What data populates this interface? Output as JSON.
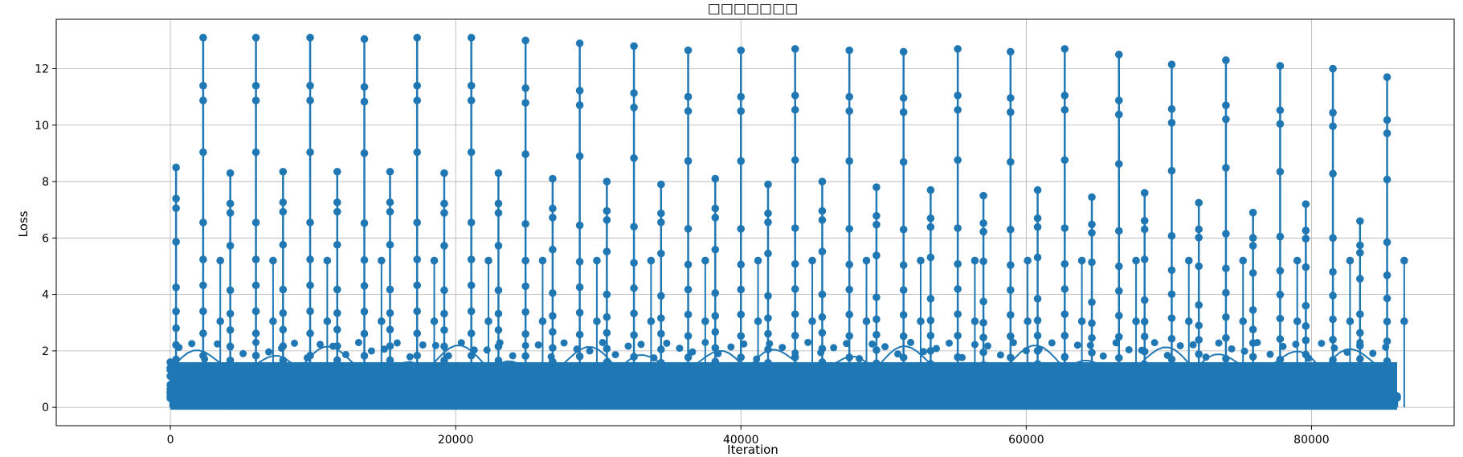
{
  "chart_data": {
    "type": "line",
    "title": "□□□□□□□",
    "xlabel": "Iteration",
    "ylabel": "Loss",
    "xlim": [
      -8000,
      90000
    ],
    "ylim": [
      -0.65,
      13.75
    ],
    "xticks": [
      0,
      20000,
      40000,
      60000,
      80000
    ],
    "yticks": [
      0,
      2,
      4,
      6,
      8,
      10,
      12
    ],
    "grid": true,
    "line_color": "#1f77b4",
    "marker": "circle",
    "series": [
      {
        "x": [
          0,
          400,
          2300,
          4200,
          6000,
          7900,
          9800,
          11700,
          13600,
          15400,
          17300,
          19200,
          21100,
          23000,
          24900,
          26800,
          28700,
          30600,
          32500,
          34400,
          36300,
          38200,
          40000,
          41900,
          43800,
          45700,
          47600,
          49500,
          51400,
          53300,
          55200,
          57000,
          58900,
          60800,
          62700,
          64600,
          66500,
          68300,
          70200,
          72100,
          74000,
          75900,
          77800,
          79600,
          81500,
          83400,
          85300,
          86000
        ],
        "peaks": [
          1.6,
          8.5,
          13.1,
          8.3,
          13.1,
          8.35,
          13.1,
          8.35,
          13.05,
          8.35,
          13.1,
          8.3,
          13.1,
          8.3,
          13.0,
          8.1,
          12.9,
          8.0,
          12.8,
          7.9,
          12.65,
          8.1,
          12.65,
          7.9,
          12.7,
          8.0,
          12.65,
          7.8,
          12.6,
          7.7,
          12.7,
          7.5,
          12.6,
          7.7,
          12.7,
          7.45,
          12.5,
          7.6,
          12.15,
          7.25,
          12.3,
          6.9,
          12.1,
          7.2,
          12.0,
          6.6,
          11.7,
          0.4
        ]
      }
    ]
  }
}
